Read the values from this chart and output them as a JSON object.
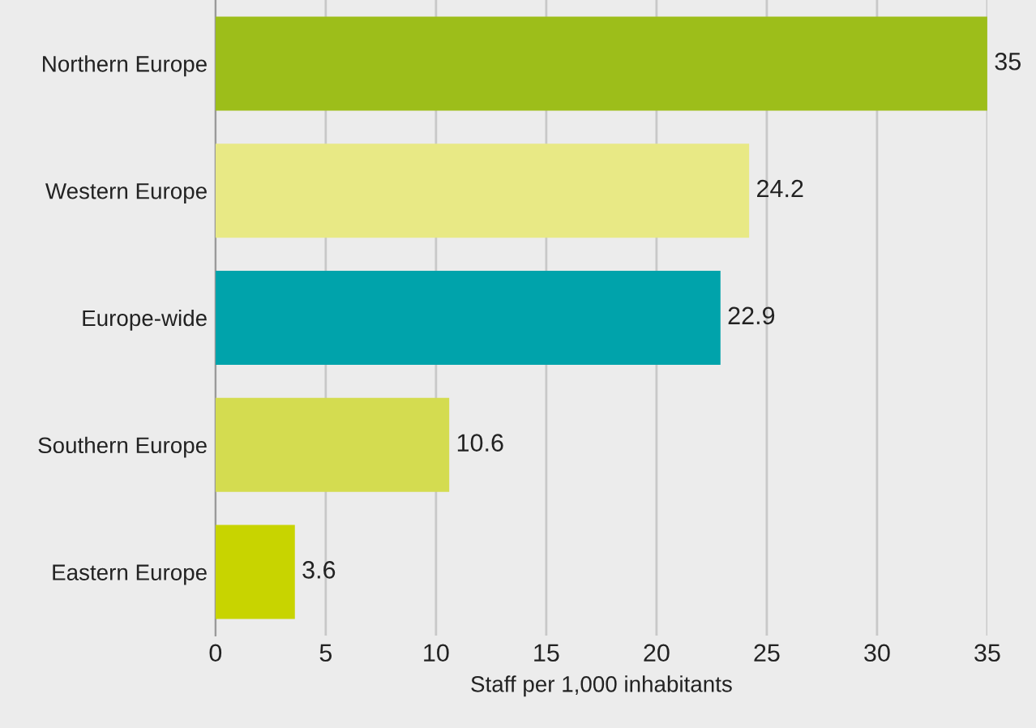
{
  "chart_data": {
    "type": "bar",
    "orientation": "horizontal",
    "xlabel": "Staff per 1,000 inhabitants",
    "categories": [
      "Northern Europe",
      "Western Europe",
      "Europe-wide",
      "Southern Europe",
      "Eastern Europe"
    ],
    "values": [
      35,
      24.2,
      22.9,
      10.6,
      3.6
    ],
    "colors": [
      "#9dbe1a",
      "#e8e985",
      "#00a3ab",
      "#d4dc50",
      "#c8d400"
    ],
    "xlim": [
      0,
      35
    ],
    "xticks": [
      0,
      5,
      10,
      15,
      20,
      25,
      30,
      35
    ],
    "grid": "x",
    "data_labels": true
  }
}
